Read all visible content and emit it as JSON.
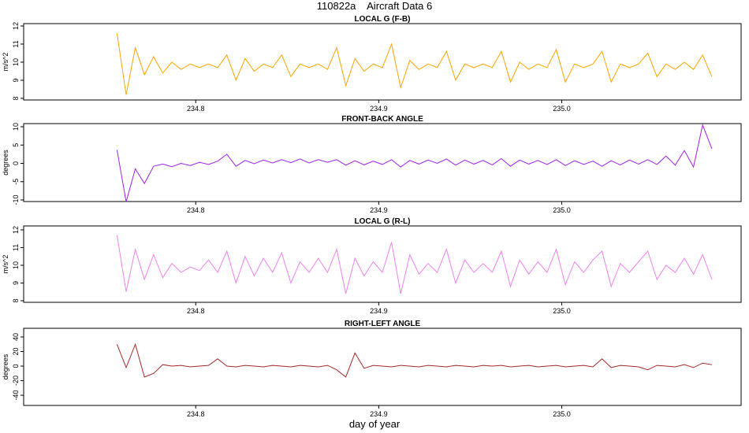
{
  "title": "110822a    Aircraft Data 6",
  "xlabel": "day of year",
  "chart_data": [
    {
      "type": "line",
      "title": "LOCAL G (F-B)",
      "ylabel": "m/s^2",
      "color": "#ffa500",
      "xlim": [
        234.706,
        235.098
      ],
      "xticks": [
        234.8,
        234.9,
        {
          "value": 235.0,
          "label": "235.0"
        }
      ],
      "ylim": [
        7.91,
        12.13
      ],
      "yticks": [
        8,
        9,
        10,
        11,
        12
      ],
      "x": [
        234.757,
        234.762,
        234.767,
        234.772,
        234.777,
        234.782,
        234.787,
        234.792,
        234.797,
        234.802,
        234.807,
        234.812,
        234.817,
        234.822,
        234.827,
        234.832,
        234.837,
        234.842,
        234.847,
        234.852,
        234.857,
        234.862,
        234.867,
        234.872,
        234.877,
        234.882,
        234.887,
        234.892,
        234.897,
        234.902,
        234.907,
        234.912,
        234.917,
        234.922,
        234.927,
        234.932,
        234.937,
        234.942,
        234.947,
        234.952,
        234.957,
        234.962,
        234.967,
        234.972,
        234.977,
        234.982,
        234.987,
        234.992,
        234.997,
        235.002,
        235.007,
        235.012,
        235.017,
        235.022,
        235.027,
        235.032,
        235.037,
        235.042,
        235.047,
        235.052,
        235.057,
        235.062,
        235.067,
        235.072,
        235.077,
        235.082
      ],
      "values": [
        11.6,
        8.2,
        10.8,
        9.3,
        10.3,
        9.4,
        10.0,
        9.6,
        9.9,
        9.7,
        9.9,
        9.7,
        10.4,
        9.0,
        10.2,
        9.5,
        9.9,
        9.7,
        10.4,
        9.2,
        9.9,
        9.7,
        9.9,
        9.6,
        10.8,
        8.7,
        10.2,
        9.5,
        9.9,
        9.7,
        11.0,
        8.6,
        10.1,
        9.6,
        9.9,
        9.7,
        10.6,
        9.0,
        9.9,
        9.7,
        9.9,
        9.7,
        10.6,
        8.9,
        10.0,
        9.6,
        9.9,
        9.7,
        10.7,
        8.9,
        9.9,
        9.7,
        9.9,
        10.6,
        8.9,
        9.9,
        9.7,
        9.9,
        10.5,
        9.2,
        9.9,
        9.6,
        10.0,
        9.6,
        10.4,
        9.2
      ]
    },
    {
      "type": "line",
      "title": "FRONT-BACK ANGLE",
      "ylabel": "degrees",
      "color": "#a020f0",
      "xlim": [
        234.706,
        235.098
      ],
      "xticks": [
        234.8,
        234.9,
        {
          "value": 235.0,
          "label": "235.0"
        }
      ],
      "ylim": [
        -10.43,
        10.86
      ],
      "yticks": [
        -10,
        -5,
        0,
        5,
        10
      ],
      "x": [
        234.757,
        234.762,
        234.767,
        234.772,
        234.777,
        234.782,
        234.787,
        234.792,
        234.797,
        234.802,
        234.807,
        234.812,
        234.817,
        234.822,
        234.827,
        234.832,
        234.837,
        234.842,
        234.847,
        234.852,
        234.857,
        234.862,
        234.867,
        234.872,
        234.877,
        234.882,
        234.887,
        234.892,
        234.897,
        234.902,
        234.907,
        234.912,
        234.917,
        234.922,
        234.927,
        234.932,
        234.937,
        234.942,
        234.947,
        234.952,
        234.957,
        234.962,
        234.967,
        234.972,
        234.977,
        234.982,
        234.987,
        234.992,
        234.997,
        235.002,
        235.007,
        235.012,
        235.017,
        235.022,
        235.027,
        235.032,
        235.037,
        235.042,
        235.047,
        235.052,
        235.057,
        235.062,
        235.067,
        235.072,
        235.077,
        235.082
      ],
      "values": [
        3.7,
        -10.5,
        -1.5,
        -5.5,
        -0.8,
        -0.2,
        -0.9,
        0.0,
        -0.6,
        0.3,
        -0.3,
        0.6,
        2.5,
        -0.8,
        0.8,
        -0.1,
        0.9,
        0.1,
        1.0,
        0.2,
        1.2,
        0.1,
        1.0,
        0.3,
        1.0,
        -0.5,
        0.7,
        -0.4,
        0.6,
        -0.3,
        1.0,
        -1.0,
        0.8,
        -0.2,
        0.9,
        0.0,
        1.2,
        -0.5,
        0.9,
        -0.2,
        0.8,
        -0.4,
        1.3,
        -0.8,
        0.9,
        -0.2,
        0.8,
        -0.3,
        1.0,
        -0.6,
        0.7,
        -0.3,
        0.6,
        -0.8,
        0.7,
        -0.4,
        0.9,
        -0.2,
        1.0,
        -0.3,
        2.0,
        -0.5,
        3.5,
        -1.0,
        10.5,
        4.0
      ]
    },
    {
      "type": "line",
      "title": "LOCAL G (R-L)",
      "ylabel": "m/s^2",
      "color": "#ee82ee",
      "xlim": [
        234.706,
        235.098
      ],
      "xticks": [
        234.8,
        234.9,
        {
          "value": 235.0,
          "label": "235.0"
        }
      ],
      "ylim": [
        7.91,
        12.22
      ],
      "yticks": [
        8,
        9,
        10,
        11,
        12
      ],
      "x": [
        234.757,
        234.762,
        234.767,
        234.772,
        234.777,
        234.782,
        234.787,
        234.792,
        234.797,
        234.802,
        234.807,
        234.812,
        234.817,
        234.822,
        234.827,
        234.832,
        234.837,
        234.842,
        234.847,
        234.852,
        234.857,
        234.862,
        234.867,
        234.872,
        234.877,
        234.882,
        234.887,
        234.892,
        234.897,
        234.902,
        234.907,
        234.912,
        234.917,
        234.922,
        234.927,
        234.932,
        234.937,
        234.942,
        234.947,
        234.952,
        234.957,
        234.962,
        234.967,
        234.972,
        234.977,
        234.982,
        234.987,
        234.992,
        234.997,
        235.002,
        235.007,
        235.012,
        235.017,
        235.022,
        235.027,
        235.032,
        235.037,
        235.042,
        235.047,
        235.052,
        235.057,
        235.062,
        235.067,
        235.072,
        235.077,
        235.082
      ],
      "values": [
        11.7,
        8.5,
        10.9,
        9.2,
        10.6,
        9.3,
        10.1,
        9.6,
        9.9,
        9.7,
        10.3,
        9.6,
        10.8,
        9.0,
        10.5,
        9.4,
        10.4,
        9.6,
        10.7,
        9.0,
        10.2,
        9.6,
        10.4,
        9.6,
        10.9,
        8.4,
        10.4,
        9.4,
        10.2,
        9.6,
        11.3,
        8.4,
        10.6,
        9.5,
        10.1,
        9.6,
        10.9,
        9.0,
        10.3,
        9.6,
        10.1,
        9.6,
        10.8,
        8.8,
        10.3,
        9.5,
        10.2,
        9.6,
        10.9,
        8.9,
        10.2,
        9.6,
        10.3,
        10.8,
        8.8,
        10.1,
        9.6,
        10.2,
        10.8,
        9.2,
        10.0,
        9.6,
        10.4,
        9.5,
        10.6,
        9.2
      ]
    },
    {
      "type": "line",
      "title": "RIGHT-LEFT ANGLE",
      "ylabel": "degrees",
      "color": "#a52a2a",
      "xlim": [
        234.706,
        235.098
      ],
      "xticks": [
        234.8,
        234.9,
        {
          "value": 235.0,
          "label": "235.0"
        }
      ],
      "ylim": [
        -54,
        51.9
      ],
      "yticks": [
        -40,
        -20,
        0,
        20,
        40
      ],
      "x": [
        234.757,
        234.762,
        234.767,
        234.772,
        234.777,
        234.782,
        234.787,
        234.792,
        234.797,
        234.802,
        234.807,
        234.812,
        234.817,
        234.822,
        234.827,
        234.832,
        234.837,
        234.842,
        234.847,
        234.852,
        234.857,
        234.862,
        234.867,
        234.872,
        234.877,
        234.882,
        234.887,
        234.892,
        234.897,
        234.902,
        234.907,
        234.912,
        234.917,
        234.922,
        234.927,
        234.932,
        234.937,
        234.942,
        234.947,
        234.952,
        234.957,
        234.962,
        234.967,
        234.972,
        234.977,
        234.982,
        234.987,
        234.992,
        234.997,
        235.002,
        235.007,
        235.012,
        235.017,
        235.022,
        235.027,
        235.032,
        235.037,
        235.042,
        235.047,
        235.052,
        235.057,
        235.062,
        235.067,
        235.072,
        235.077,
        235.082
      ],
      "values": [
        30,
        -2,
        30,
        -15,
        -10,
        2,
        0,
        1,
        -1,
        0,
        1,
        10,
        0,
        -1,
        1,
        0,
        -1,
        1,
        0,
        -1,
        1,
        0,
        -1,
        1,
        -5,
        -15,
        18,
        -3,
        1,
        0,
        -1,
        1,
        0,
        -1,
        1,
        0,
        -1,
        1,
        0,
        -1,
        1,
        0,
        1,
        -1,
        0,
        1,
        -1,
        0,
        1,
        -1,
        0,
        1,
        -1,
        10,
        -2,
        1,
        0,
        -1,
        -5,
        1,
        0,
        -1,
        2,
        -2,
        4,
        2
      ]
    }
  ]
}
